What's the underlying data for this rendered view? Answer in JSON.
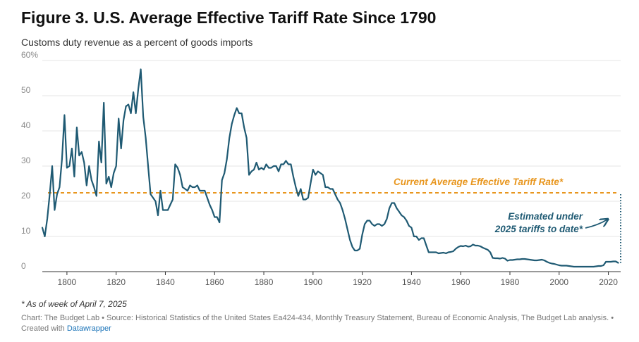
{
  "header": {
    "title": "Figure 3. U.S. Average Effective Tariff Rate Since 1790",
    "subtitle": "Customs duty revenue as a percent of goods imports"
  },
  "footer": {
    "footnote": "* As of week of April 7, 2025",
    "credit_text": "Chart: The Budget Lab • Source: Historical Statistics of the United States Ea424-434, Monthly Treasury Statement, Bureau of Economic Analysis, The Budget Lab analysis. • Created with",
    "credit_link": "Datawrapper"
  },
  "colors": {
    "line": "#1f5a73",
    "reference": "#e8961e",
    "grid": "#e6e6e6"
  },
  "chart_data": {
    "type": "line",
    "title": "Figure 3. U.S. Average Effective Tariff Rate Since 1790",
    "subtitle": "Customs duty revenue as a percent of goods imports",
    "xlabel": "",
    "ylabel": "",
    "xlim": [
      1790,
      2025
    ],
    "ylim": [
      0,
      60
    ],
    "grid": true,
    "y_ticks": [
      {
        "value": 60,
        "label": "60%"
      },
      {
        "value": 50,
        "label": "50"
      },
      {
        "value": 40,
        "label": "40"
      },
      {
        "value": 30,
        "label": "30"
      },
      {
        "value": 20,
        "label": "20"
      },
      {
        "value": 10,
        "label": "10"
      },
      {
        "value": 0,
        "label": "0"
      }
    ],
    "x_ticks": [
      {
        "value": 1800,
        "label": "1800"
      },
      {
        "value": 1820,
        "label": "1820"
      },
      {
        "value": 1840,
        "label": "1840"
      },
      {
        "value": 1860,
        "label": "1860"
      },
      {
        "value": 1880,
        "label": "1880"
      },
      {
        "value": 1900,
        "label": "1900"
      },
      {
        "value": 1920,
        "label": "1920"
      },
      {
        "value": 1940,
        "label": "1940"
      },
      {
        "value": 1960,
        "label": "1960"
      },
      {
        "value": 1980,
        "label": "1980"
      },
      {
        "value": 2000,
        "label": "2000"
      },
      {
        "value": 2020,
        "label": "2020"
      }
    ],
    "reference_line": {
      "value": 22.4,
      "label": "Current Average Effective Tariff Rate*"
    },
    "estimate": {
      "x": 2025,
      "from": 2.5,
      "to": 22.4,
      "label_lines": [
        "Estimated under",
        "2025 tariffs to date*"
      ]
    },
    "series": [
      {
        "values": [
          [
            1790,
            12.5
          ],
          [
            1791,
            10
          ],
          [
            1792,
            15
          ],
          [
            1793,
            22
          ],
          [
            1794,
            30
          ],
          [
            1795,
            17.5
          ],
          [
            1796,
            22
          ],
          [
            1797,
            24
          ],
          [
            1798,
            32
          ],
          [
            1799,
            44.5
          ],
          [
            1800,
            29.5
          ],
          [
            1801,
            30
          ],
          [
            1802,
            35
          ],
          [
            1803,
            27
          ],
          [
            1804,
            41
          ],
          [
            1805,
            33
          ],
          [
            1806,
            34
          ],
          [
            1807,
            31
          ],
          [
            1808,
            24.5
          ],
          [
            1809,
            30
          ],
          [
            1810,
            26
          ],
          [
            1811,
            24
          ],
          [
            1812,
            21.5
          ],
          [
            1813,
            37
          ],
          [
            1814,
            31
          ],
          [
            1815,
            48
          ],
          [
            1816,
            25
          ],
          [
            1817,
            27
          ],
          [
            1818,
            24
          ],
          [
            1819,
            28
          ],
          [
            1820,
            30
          ],
          [
            1821,
            43.5
          ],
          [
            1822,
            35
          ],
          [
            1823,
            43
          ],
          [
            1824,
            47
          ],
          [
            1825,
            47.5
          ],
          [
            1826,
            45
          ],
          [
            1827,
            51
          ],
          [
            1828,
            45
          ],
          [
            1829,
            52
          ],
          [
            1830,
            57.5
          ],
          [
            1831,
            44
          ],
          [
            1832,
            38
          ],
          [
            1833,
            30
          ],
          [
            1834,
            22
          ],
          [
            1835,
            21
          ],
          [
            1836,
            20
          ],
          [
            1837,
            16
          ],
          [
            1838,
            23
          ],
          [
            1839,
            17.5
          ],
          [
            1840,
            17.5
          ],
          [
            1841,
            17.5
          ],
          [
            1842,
            19
          ],
          [
            1843,
            20.5
          ],
          [
            1844,
            30.5
          ],
          [
            1845,
            29.5
          ],
          [
            1846,
            27.5
          ],
          [
            1847,
            24
          ],
          [
            1848,
            23.5
          ],
          [
            1849,
            23
          ],
          [
            1850,
            24.5
          ],
          [
            1851,
            24
          ],
          [
            1852,
            24
          ],
          [
            1853,
            24.5
          ],
          [
            1854,
            23
          ],
          [
            1855,
            23
          ],
          [
            1856,
            23
          ],
          [
            1857,
            21
          ],
          [
            1858,
            19
          ],
          [
            1859,
            17.5
          ],
          [
            1860,
            15.5
          ],
          [
            1861,
            15.5
          ],
          [
            1862,
            14
          ],
          [
            1863,
            26
          ],
          [
            1864,
            28
          ],
          [
            1865,
            32
          ],
          [
            1866,
            38
          ],
          [
            1867,
            42
          ],
          [
            1868,
            44.5
          ],
          [
            1869,
            46.5
          ],
          [
            1870,
            45
          ],
          [
            1871,
            45
          ],
          [
            1872,
            41
          ],
          [
            1873,
            38
          ],
          [
            1874,
            27.5
          ],
          [
            1875,
            28.5
          ],
          [
            1876,
            29
          ],
          [
            1877,
            31
          ],
          [
            1878,
            29
          ],
          [
            1879,
            29.5
          ],
          [
            1880,
            29
          ],
          [
            1881,
            30.5
          ],
          [
            1882,
            29.5
          ],
          [
            1883,
            29.5
          ],
          [
            1884,
            30
          ],
          [
            1885,
            30
          ],
          [
            1886,
            28.5
          ],
          [
            1887,
            30.5
          ],
          [
            1888,
            30.5
          ],
          [
            1889,
            31.5
          ],
          [
            1890,
            30.5
          ],
          [
            1891,
            30.5
          ],
          [
            1892,
            27
          ],
          [
            1893,
            24
          ],
          [
            1894,
            21.5
          ],
          [
            1895,
            23.5
          ],
          [
            1896,
            20.5
          ],
          [
            1897,
            20.5
          ],
          [
            1898,
            21
          ],
          [
            1899,
            25
          ],
          [
            1900,
            29
          ],
          [
            1901,
            27.5
          ],
          [
            1902,
            28.5
          ],
          [
            1903,
            28
          ],
          [
            1904,
            27.5
          ],
          [
            1905,
            24
          ],
          [
            1906,
            24
          ],
          [
            1907,
            23.5
          ],
          [
            1908,
            23.5
          ],
          [
            1909,
            22
          ],
          [
            1910,
            20.5
          ],
          [
            1911,
            19.5
          ],
          [
            1912,
            17.5
          ],
          [
            1913,
            15
          ],
          [
            1914,
            12
          ],
          [
            1915,
            9
          ],
          [
            1916,
            7
          ],
          [
            1917,
            6
          ],
          [
            1918,
            6
          ],
          [
            1919,
            6.5
          ],
          [
            1920,
            10.5
          ],
          [
            1921,
            13.5
          ],
          [
            1922,
            14.5
          ],
          [
            1923,
            14.5
          ],
          [
            1924,
            13.5
          ],
          [
            1925,
            13
          ],
          [
            1926,
            13.5
          ],
          [
            1927,
            13.5
          ],
          [
            1928,
            13
          ],
          [
            1929,
            13.5
          ],
          [
            1930,
            15
          ],
          [
            1931,
            18
          ],
          [
            1932,
            19.5
          ],
          [
            1933,
            19.5
          ],
          [
            1934,
            18
          ],
          [
            1935,
            17
          ],
          [
            1936,
            16
          ],
          [
            1937,
            15.5
          ],
          [
            1938,
            14.5
          ],
          [
            1939,
            13
          ],
          [
            1940,
            12.5
          ],
          [
            1941,
            10
          ],
          [
            1942,
            10
          ],
          [
            1943,
            9
          ],
          [
            1944,
            9.5
          ],
          [
            1945,
            9.5
          ],
          [
            1946,
            7.5
          ],
          [
            1947,
            5.5
          ],
          [
            1948,
            5.5
          ],
          [
            1949,
            5.5
          ],
          [
            1950,
            5.5
          ],
          [
            1951,
            5.2
          ],
          [
            1952,
            5.3
          ],
          [
            1953,
            5.4
          ],
          [
            1954,
            5.2
          ],
          [
            1955,
            5.5
          ],
          [
            1956,
            5.6
          ],
          [
            1957,
            5.8
          ],
          [
            1958,
            6.5
          ],
          [
            1959,
            7
          ],
          [
            1960,
            7.3
          ],
          [
            1961,
            7.2
          ],
          [
            1962,
            7.4
          ],
          [
            1963,
            7.1
          ],
          [
            1964,
            7.2
          ],
          [
            1965,
            7.7
          ],
          [
            1966,
            7.4
          ],
          [
            1967,
            7.4
          ],
          [
            1968,
            7.2
          ],
          [
            1969,
            6.8
          ],
          [
            1970,
            6.5
          ],
          [
            1971,
            6.2
          ],
          [
            1972,
            5.5
          ],
          [
            1973,
            3.9
          ],
          [
            1974,
            3.8
          ],
          [
            1975,
            3.8
          ],
          [
            1976,
            3.7
          ],
          [
            1977,
            3.9
          ],
          [
            1978,
            3.7
          ],
          [
            1979,
            3.1
          ],
          [
            1980,
            3.3
          ],
          [
            1981,
            3.3
          ],
          [
            1982,
            3.4
          ],
          [
            1983,
            3.5
          ],
          [
            1984,
            3.5
          ],
          [
            1985,
            3.6
          ],
          [
            1986,
            3.6
          ],
          [
            1987,
            3.5
          ],
          [
            1988,
            3.4
          ],
          [
            1989,
            3.3
          ],
          [
            1990,
            3.2
          ],
          [
            1991,
            3.2
          ],
          [
            1992,
            3.3
          ],
          [
            1993,
            3.4
          ],
          [
            1994,
            3.2
          ],
          [
            1995,
            2.8
          ],
          [
            1996,
            2.5
          ],
          [
            1997,
            2.3
          ],
          [
            1998,
            2.2
          ],
          [
            1999,
            2.0
          ],
          [
            2000,
            1.8
          ],
          [
            2001,
            1.7
          ],
          [
            2002,
            1.7
          ],
          [
            2003,
            1.7
          ],
          [
            2004,
            1.6
          ],
          [
            2005,
            1.5
          ],
          [
            2006,
            1.4
          ],
          [
            2007,
            1.4
          ],
          [
            2008,
            1.4
          ],
          [
            2009,
            1.4
          ],
          [
            2010,
            1.4
          ],
          [
            2011,
            1.4
          ],
          [
            2012,
            1.4
          ],
          [
            2013,
            1.4
          ],
          [
            2014,
            1.4
          ],
          [
            2015,
            1.5
          ],
          [
            2016,
            1.6
          ],
          [
            2017,
            1.6
          ],
          [
            2018,
            1.8
          ],
          [
            2019,
            2.8
          ],
          [
            2020,
            2.8
          ],
          [
            2021,
            2.8
          ],
          [
            2022,
            2.9
          ],
          [
            2023,
            2.9
          ],
          [
            2024,
            2.5
          ]
        ]
      }
    ]
  }
}
